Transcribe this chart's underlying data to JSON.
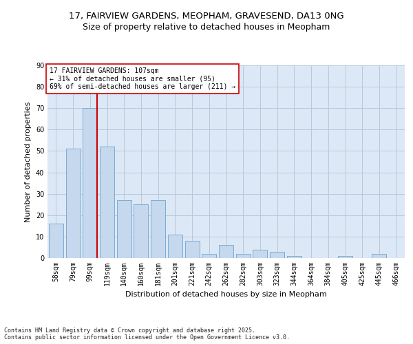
{
  "title_line1": "17, FAIRVIEW GARDENS, MEOPHAM, GRAVESEND, DA13 0NG",
  "title_line2": "Size of property relative to detached houses in Meopham",
  "xlabel": "Distribution of detached houses by size in Meopham",
  "ylabel": "Number of detached properties",
  "categories": [
    "58sqm",
    "79sqm",
    "99sqm",
    "119sqm",
    "140sqm",
    "160sqm",
    "181sqm",
    "201sqm",
    "221sqm",
    "242sqm",
    "262sqm",
    "282sqm",
    "303sqm",
    "323sqm",
    "344sqm",
    "364sqm",
    "384sqm",
    "405sqm",
    "425sqm",
    "445sqm",
    "466sqm"
  ],
  "values": [
    16,
    51,
    70,
    52,
    27,
    25,
    27,
    11,
    8,
    2,
    6,
    2,
    4,
    3,
    1,
    0,
    0,
    1,
    0,
    2,
    0
  ],
  "bar_color": "#c5d8ee",
  "bar_edge_color": "#7aadd4",
  "vline_x_index": 2,
  "vline_color": "#cc0000",
  "annotation_line1": "17 FAIRVIEW GARDENS: 107sqm",
  "annotation_line2": "← 31% of detached houses are smaller (95)",
  "annotation_line3": "69% of semi-detached houses are larger (211) →",
  "annotation_box_facecolor": "#ffffff",
  "annotation_box_edgecolor": "#cc0000",
  "ylim": [
    0,
    90
  ],
  "yticks": [
    0,
    10,
    20,
    30,
    40,
    50,
    60,
    70,
    80,
    90
  ],
  "background_color": "#dce8f5",
  "grid_color": "#b8c8dc",
  "footer_text": "Contains HM Land Registry data © Crown copyright and database right 2025.\nContains public sector information licensed under the Open Government Licence v3.0.",
  "title1_fontsize": 9.5,
  "title2_fontsize": 9,
  "axis_label_fontsize": 8,
  "tick_fontsize": 7,
  "annotation_fontsize": 7,
  "footer_fontsize": 6
}
